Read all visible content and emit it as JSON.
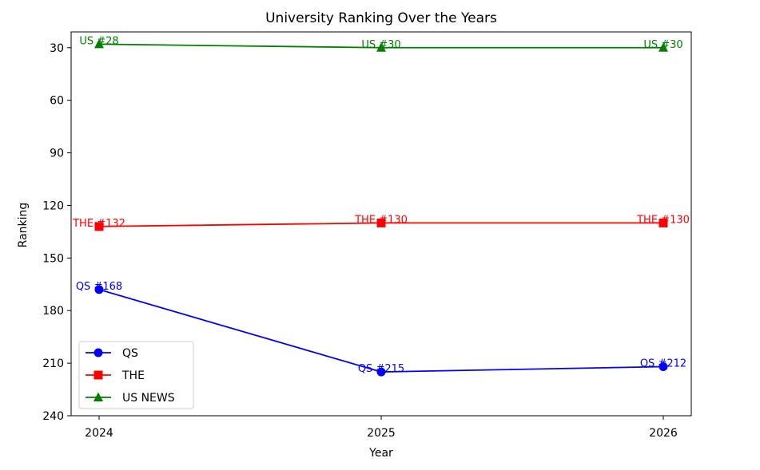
{
  "chart_data": {
    "type": "line",
    "title": "University Ranking Over the Years",
    "xlabel": "Year",
    "ylabel": "Ranking",
    "x": [
      2024,
      2025,
      2026
    ],
    "x_tick_labels": [
      "2024",
      "2025",
      "2026"
    ],
    "y_ticks": [
      30,
      60,
      90,
      120,
      150,
      180,
      210,
      240
    ],
    "y_tick_labels": [
      "30",
      "60",
      "90",
      "120",
      "150",
      "180",
      "210",
      "240"
    ],
    "ylim": [
      240,
      21
    ],
    "y_inverted": true,
    "grid": false,
    "legend_position": "lower-left",
    "series": [
      {
        "name": "QS",
        "values": [
          168,
          215,
          212
        ],
        "labels": [
          "QS #168",
          "QS #215",
          "QS #212"
        ],
        "color": "#0000ff",
        "marker": "circle"
      },
      {
        "name": "THE",
        "values": [
          132,
          130,
          130
        ],
        "labels": [
          "THE #132",
          "THE #130",
          "THE #130"
        ],
        "color": "#ff0000",
        "marker": "square"
      },
      {
        "name": "US NEWS",
        "values": [
          28,
          30,
          30
        ],
        "labels": [
          "US #28",
          "US #30",
          "US #30"
        ],
        "color": "#008000",
        "marker": "triangle"
      }
    ]
  }
}
